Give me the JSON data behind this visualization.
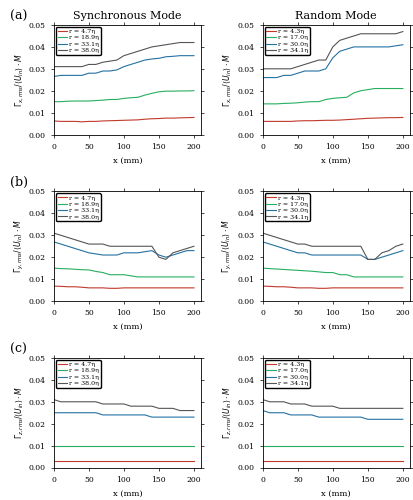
{
  "title_left": "Synchronous Mode",
  "title_right": "Random Mode",
  "row_labels": [
    "(a)",
    "(b)",
    "(c)"
  ],
  "xlabel": "x (mm)",
  "xlim": [
    0,
    210
  ],
  "xticks": [
    0,
    50,
    100,
    150,
    200
  ],
  "ylim": [
    0,
    0.05
  ],
  "yticks": [
    0,
    0.01,
    0.02,
    0.03,
    0.04,
    0.05
  ],
  "colors": [
    "#c0392b",
    "#27ae60",
    "#2471a3",
    "#555555"
  ],
  "sync_labels": [
    "r = 4.7η",
    "r = 18.9η",
    "r = 33.1η",
    "r = 38.0η"
  ],
  "rand_labels": [
    "r = 4.3η",
    "r = 17.0η",
    "r = 30.0η",
    "r = 34.1η"
  ],
  "sync_data": {
    "ax": {
      "x": [
        0,
        10,
        20,
        30,
        40,
        50,
        60,
        70,
        80,
        90,
        100,
        110,
        120,
        130,
        140,
        150,
        160,
        170,
        180,
        190,
        200
      ],
      "r1": [
        0.0062,
        0.006,
        0.006,
        0.006,
        0.0058,
        0.006,
        0.006,
        0.0062,
        0.0063,
        0.0064,
        0.0065,
        0.0066,
        0.0067,
        0.007,
        0.0072,
        0.0073,
        0.0075,
        0.0075,
        0.0076,
        0.0077,
        0.0078
      ],
      "r2": [
        0.015,
        0.015,
        0.0152,
        0.0153,
        0.0153,
        0.0153,
        0.0155,
        0.0157,
        0.016,
        0.016,
        0.0165,
        0.0168,
        0.017,
        0.018,
        0.0188,
        0.0195,
        0.0198,
        0.0198,
        0.0199,
        0.0199,
        0.02
      ],
      "r3": [
        0.0265,
        0.027,
        0.027,
        0.027,
        0.027,
        0.028,
        0.028,
        0.029,
        0.029,
        0.0295,
        0.031,
        0.032,
        0.033,
        0.034,
        0.0345,
        0.0348,
        0.0355,
        0.0357,
        0.036,
        0.036,
        0.036
      ],
      "r4": [
        0.031,
        0.031,
        0.031,
        0.031,
        0.031,
        0.032,
        0.032,
        0.033,
        0.0335,
        0.034,
        0.036,
        0.037,
        0.038,
        0.039,
        0.04,
        0.0405,
        0.041,
        0.0415,
        0.042,
        0.042,
        0.042
      ]
    },
    "bx": {
      "x": [
        0,
        10,
        20,
        30,
        40,
        50,
        60,
        70,
        80,
        90,
        100,
        110,
        120,
        130,
        140,
        150,
        160,
        170,
        180,
        190,
        200
      ],
      "r1": [
        0.0068,
        0.0067,
        0.0065,
        0.0065,
        0.0063,
        0.006,
        0.006,
        0.006,
        0.0058,
        0.0058,
        0.006,
        0.006,
        0.006,
        0.006,
        0.006,
        0.006,
        0.006,
        0.006,
        0.006,
        0.006,
        0.006
      ],
      "r2": [
        0.015,
        0.0148,
        0.0147,
        0.0145,
        0.0143,
        0.0142,
        0.0135,
        0.013,
        0.012,
        0.012,
        0.012,
        0.0115,
        0.011,
        0.011,
        0.011,
        0.011,
        0.011,
        0.011,
        0.011,
        0.011,
        0.011
      ],
      "r3": [
        0.027,
        0.026,
        0.025,
        0.024,
        0.023,
        0.022,
        0.0215,
        0.021,
        0.021,
        0.021,
        0.022,
        0.022,
        0.022,
        0.0225,
        0.023,
        0.021,
        0.02,
        0.021,
        0.022,
        0.023,
        0.023
      ],
      "r4": [
        0.031,
        0.03,
        0.029,
        0.028,
        0.027,
        0.026,
        0.026,
        0.026,
        0.025,
        0.025,
        0.025,
        0.025,
        0.025,
        0.025,
        0.025,
        0.02,
        0.019,
        0.022,
        0.023,
        0.024,
        0.025
      ]
    },
    "cx": {
      "x": [
        0,
        10,
        20,
        30,
        40,
        50,
        60,
        70,
        80,
        90,
        100,
        110,
        120,
        130,
        140,
        150,
        160,
        170,
        180,
        190,
        200
      ],
      "r1": [
        0.003,
        0.003,
        0.003,
        0.003,
        0.003,
        0.003,
        0.003,
        0.003,
        0.003,
        0.003,
        0.003,
        0.003,
        0.003,
        0.003,
        0.003,
        0.003,
        0.003,
        0.003,
        0.003,
        0.003,
        0.003
      ],
      "r2": [
        0.01,
        0.01,
        0.01,
        0.01,
        0.01,
        0.01,
        0.01,
        0.01,
        0.01,
        0.01,
        0.01,
        0.01,
        0.01,
        0.01,
        0.01,
        0.01,
        0.01,
        0.01,
        0.01,
        0.01,
        0.01
      ],
      "r3": [
        0.025,
        0.025,
        0.025,
        0.025,
        0.025,
        0.025,
        0.025,
        0.024,
        0.024,
        0.024,
        0.024,
        0.024,
        0.024,
        0.024,
        0.023,
        0.023,
        0.023,
        0.023,
        0.023,
        0.023,
        0.023
      ],
      "r4": [
        0.031,
        0.03,
        0.03,
        0.03,
        0.03,
        0.03,
        0.03,
        0.029,
        0.029,
        0.029,
        0.029,
        0.028,
        0.028,
        0.028,
        0.028,
        0.027,
        0.027,
        0.027,
        0.026,
        0.026,
        0.026
      ]
    }
  },
  "rand_data": {
    "ax": {
      "x": [
        0,
        10,
        20,
        30,
        40,
        50,
        60,
        70,
        80,
        90,
        100,
        110,
        120,
        130,
        140,
        150,
        160,
        170,
        180,
        190,
        200
      ],
      "r1": [
        0.006,
        0.006,
        0.006,
        0.006,
        0.006,
        0.0062,
        0.0063,
        0.0063,
        0.0064,
        0.0065,
        0.0065,
        0.0066,
        0.0068,
        0.007,
        0.0072,
        0.0074,
        0.0075,
        0.0076,
        0.0077,
        0.0077,
        0.0078
      ],
      "r2": [
        0.014,
        0.014,
        0.014,
        0.0142,
        0.0143,
        0.0145,
        0.0148,
        0.015,
        0.015,
        0.016,
        0.0165,
        0.0168,
        0.017,
        0.019,
        0.02,
        0.0205,
        0.021,
        0.021,
        0.021,
        0.021,
        0.021
      ],
      "r3": [
        0.026,
        0.026,
        0.026,
        0.027,
        0.027,
        0.028,
        0.029,
        0.029,
        0.029,
        0.03,
        0.035,
        0.038,
        0.039,
        0.04,
        0.04,
        0.04,
        0.04,
        0.04,
        0.04,
        0.0405,
        0.041
      ],
      "r4": [
        0.03,
        0.03,
        0.03,
        0.03,
        0.03,
        0.031,
        0.032,
        0.033,
        0.034,
        0.034,
        0.04,
        0.043,
        0.044,
        0.045,
        0.046,
        0.046,
        0.046,
        0.046,
        0.046,
        0.046,
        0.047
      ]
    },
    "bx": {
      "x": [
        0,
        10,
        20,
        30,
        40,
        50,
        60,
        70,
        80,
        90,
        100,
        110,
        120,
        130,
        140,
        150,
        160,
        170,
        180,
        190,
        200
      ],
      "r1": [
        0.0068,
        0.0067,
        0.0065,
        0.0065,
        0.0063,
        0.006,
        0.006,
        0.006,
        0.0058,
        0.0058,
        0.006,
        0.006,
        0.006,
        0.006,
        0.006,
        0.006,
        0.006,
        0.006,
        0.006,
        0.006,
        0.006
      ],
      "r2": [
        0.015,
        0.0148,
        0.0146,
        0.0144,
        0.0142,
        0.014,
        0.0138,
        0.0136,
        0.0133,
        0.013,
        0.013,
        0.012,
        0.012,
        0.011,
        0.011,
        0.011,
        0.011,
        0.011,
        0.011,
        0.011,
        0.011
      ],
      "r3": [
        0.027,
        0.026,
        0.025,
        0.024,
        0.023,
        0.022,
        0.022,
        0.021,
        0.021,
        0.021,
        0.021,
        0.021,
        0.021,
        0.021,
        0.021,
        0.019,
        0.019,
        0.02,
        0.021,
        0.022,
        0.023
      ],
      "r4": [
        0.031,
        0.03,
        0.029,
        0.028,
        0.027,
        0.026,
        0.026,
        0.025,
        0.025,
        0.025,
        0.025,
        0.025,
        0.025,
        0.025,
        0.025,
        0.019,
        0.019,
        0.022,
        0.023,
        0.025,
        0.026
      ]
    },
    "cx": {
      "x": [
        0,
        10,
        20,
        30,
        40,
        50,
        60,
        70,
        80,
        90,
        100,
        110,
        120,
        130,
        140,
        150,
        160,
        170,
        180,
        190,
        200
      ],
      "r1": [
        0.003,
        0.003,
        0.003,
        0.003,
        0.003,
        0.003,
        0.003,
        0.003,
        0.003,
        0.003,
        0.003,
        0.003,
        0.003,
        0.003,
        0.003,
        0.003,
        0.003,
        0.003,
        0.003,
        0.003,
        0.003
      ],
      "r2": [
        0.01,
        0.01,
        0.01,
        0.01,
        0.01,
        0.01,
        0.01,
        0.01,
        0.01,
        0.01,
        0.01,
        0.01,
        0.01,
        0.01,
        0.01,
        0.01,
        0.01,
        0.01,
        0.01,
        0.01,
        0.01
      ],
      "r3": [
        0.026,
        0.025,
        0.025,
        0.025,
        0.024,
        0.024,
        0.024,
        0.024,
        0.023,
        0.023,
        0.023,
        0.023,
        0.023,
        0.023,
        0.023,
        0.022,
        0.022,
        0.022,
        0.022,
        0.022,
        0.022
      ],
      "r4": [
        0.031,
        0.03,
        0.03,
        0.03,
        0.029,
        0.029,
        0.029,
        0.028,
        0.028,
        0.028,
        0.028,
        0.027,
        0.027,
        0.027,
        0.027,
        0.027,
        0.027,
        0.027,
        0.027,
        0.027,
        0.027
      ]
    }
  }
}
